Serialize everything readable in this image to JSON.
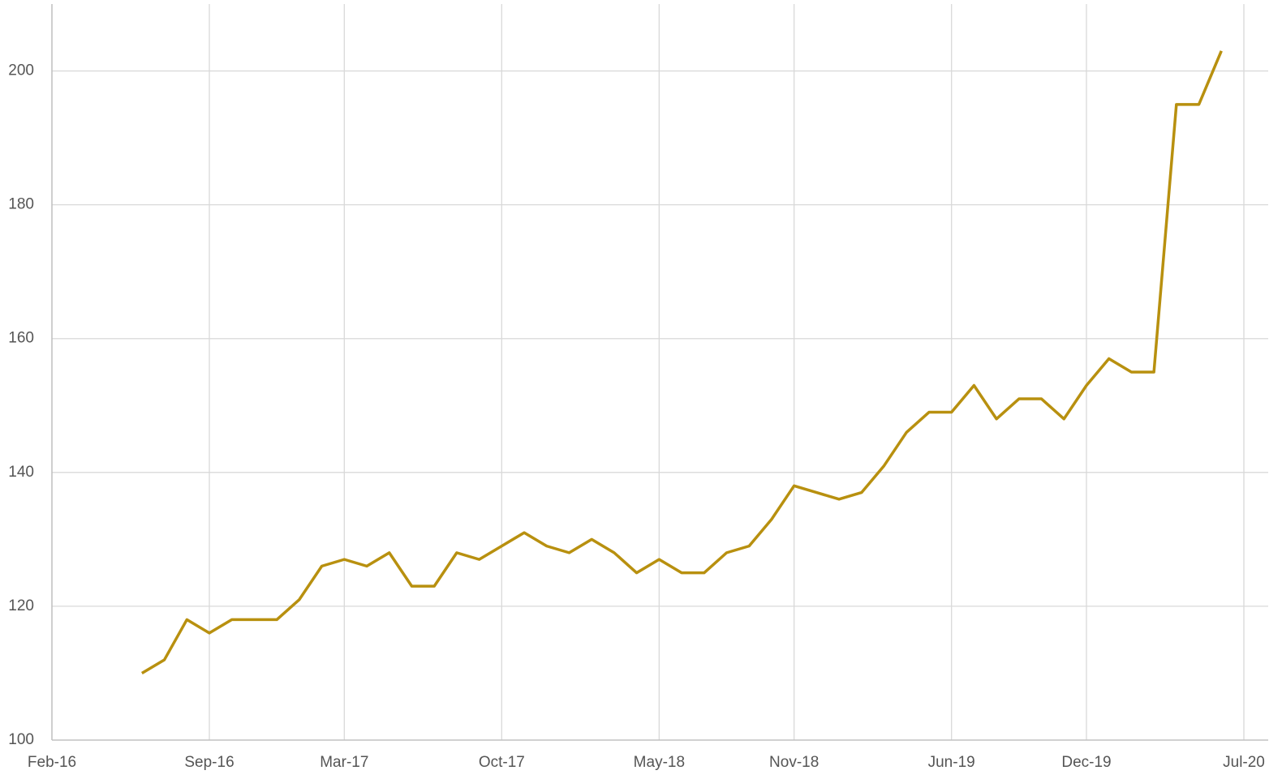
{
  "chart_data": {
    "type": "line",
    "x": [
      "2016-06",
      "2016-07",
      "2016-08",
      "2016-09",
      "2016-10",
      "2016-11",
      "2016-12",
      "2017-01",
      "2017-02",
      "2017-03",
      "2017-04",
      "2017-05",
      "2017-06",
      "2017-07",
      "2017-08",
      "2017-09",
      "2017-10",
      "2017-11",
      "2017-12",
      "2018-01",
      "2018-02",
      "2018-03",
      "2018-04",
      "2018-05",
      "2018-06",
      "2018-07",
      "2018-08",
      "2018-09",
      "2018-10",
      "2018-11",
      "2018-12",
      "2019-01",
      "2019-02",
      "2019-03",
      "2019-04",
      "2019-05",
      "2019-06",
      "2019-07",
      "2019-08",
      "2019-09",
      "2019-10",
      "2019-11",
      "2019-12",
      "2020-01",
      "2020-02",
      "2020-03",
      "2020-04",
      "2020-05",
      "2020-06"
    ],
    "series": [
      {
        "color": "#b8900f",
        "values": [
          110,
          112,
          118,
          116,
          118,
          118,
          118,
          121,
          126,
          127,
          126,
          128,
          123,
          123,
          128,
          127,
          129,
          131,
          129,
          128,
          130,
          128,
          125,
          127,
          125,
          125,
          128,
          129,
          133,
          138,
          137,
          136,
          137,
          141,
          146,
          149,
          149,
          153,
          148,
          151,
          151,
          148,
          153,
          157,
          155,
          155,
          195,
          195,
          203
        ]
      }
    ],
    "xlim": [
      "2016-02",
      "2020-07"
    ],
    "xticks": [
      {
        "value": "2016-02",
        "label": "Feb-16"
      },
      {
        "value": "2016-09",
        "label": "Sep-16"
      },
      {
        "value": "2017-03",
        "label": "Mar-17"
      },
      {
        "value": "2017-10",
        "label": "Oct-17"
      },
      {
        "value": "2018-05",
        "label": "May-18"
      },
      {
        "value": "2018-11",
        "label": "Nov-18"
      },
      {
        "value": "2019-06",
        "label": "Jun-19"
      },
      {
        "value": "2019-12",
        "label": "Dec-19"
      },
      {
        "value": "2020-07",
        "label": "Jul-20"
      }
    ],
    "ylim": [
      100,
      210
    ],
    "yticks": [
      100,
      120,
      140,
      160,
      180,
      200
    ],
    "grid": true
  }
}
